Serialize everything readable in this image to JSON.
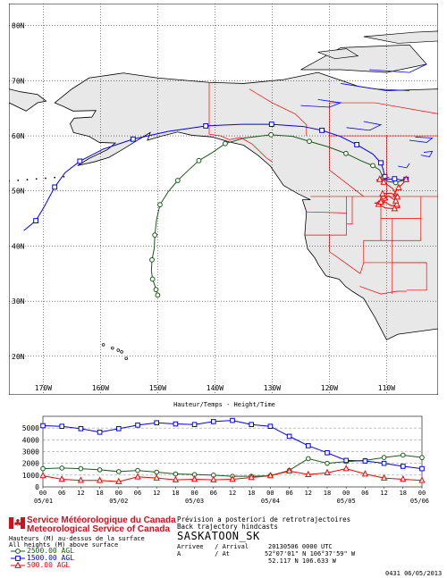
{
  "map": {
    "lat_labels": [
      {
        "text": "80N",
        "lat": 80
      },
      {
        "text": "70N",
        "lat": 70
      },
      {
        "text": "60N",
        "lat": 60
      },
      {
        "text": "50N",
        "lat": 50
      },
      {
        "text": "40N",
        "lat": 40
      },
      {
        "text": "30N",
        "lat": 30
      },
      {
        "text": "20N",
        "lat": 20
      }
    ],
    "lon_labels": [
      {
        "text": "170W",
        "lon": -170
      },
      {
        "text": "160W",
        "lon": -160
      },
      {
        "text": "150W",
        "lon": -150
      },
      {
        "text": "140W",
        "lon": -140
      },
      {
        "text": "130W",
        "lon": -130
      },
      {
        "text": "120W",
        "lon": -120
      },
      {
        "text": "110W",
        "lon": -110
      }
    ],
    "colors": {
      "land": "#e8e8e8",
      "ocean": "#ffffff",
      "boundary_red": "#ff0000",
      "lakes_blue": "#0000ff",
      "grid": "#000000"
    },
    "trajectories": [
      {
        "height": "2500.00 AGL",
        "color": "#1a5a1a",
        "marker": "circle",
        "points": [
          [
            -106.6,
            52.1
          ],
          [
            -107.2,
            51.9
          ],
          [
            -108.4,
            51.5
          ],
          [
            -109.7,
            51.7
          ],
          [
            -110.6,
            52.3
          ],
          [
            -111.2,
            53.8
          ],
          [
            -112.4,
            54.6
          ],
          [
            -114.3,
            55.4
          ],
          [
            -117.1,
            56.8
          ],
          [
            -120.2,
            58.0
          ],
          [
            -123.5,
            59.0
          ],
          [
            -126.4,
            59.9
          ],
          [
            -130.2,
            60.2
          ],
          [
            -134.9,
            59.6
          ],
          [
            -138.2,
            58.6
          ],
          [
            -140.4,
            57.0
          ],
          [
            -142.8,
            55.5
          ],
          [
            -144.6,
            53.8
          ],
          [
            -146.5,
            51.9
          ],
          [
            -148.2,
            49.8
          ],
          [
            -149.6,
            47.5
          ],
          [
            -150.2,
            44.8
          ],
          [
            -150.5,
            42.0
          ],
          [
            -150.6,
            39.6
          ],
          [
            -151.0,
            37.5
          ],
          [
            -151.1,
            35.5
          ],
          [
            -150.9,
            34.0
          ],
          [
            -150.5,
            32.8
          ],
          [
            -150.3,
            32.1
          ],
          [
            -150.1,
            31.6
          ],
          [
            -150.0,
            31.1
          ]
        ]
      },
      {
        "height": "1500.00 AGL",
        "color": "#0000ff",
        "marker": "square",
        "points": [
          [
            -106.6,
            52.1
          ],
          [
            -107.5,
            52.0
          ],
          [
            -108.6,
            52.2
          ],
          [
            -109.8,
            52.1
          ],
          [
            -110.3,
            52.6
          ],
          [
            -110.6,
            53.9
          ],
          [
            -111.0,
            55.1
          ],
          [
            -112.4,
            56.7
          ],
          [
            -115.2,
            58.4
          ],
          [
            -118.1,
            59.9
          ],
          [
            -121.3,
            61.0
          ],
          [
            -124.6,
            61.7
          ],
          [
            -130.1,
            62.1
          ],
          [
            -135.4,
            62.1
          ],
          [
            -141.6,
            61.8
          ],
          [
            -148.2,
            60.8
          ],
          [
            -154.3,
            59.4
          ],
          [
            -159.5,
            57.6
          ],
          [
            -163.6,
            55.4
          ],
          [
            -166.2,
            53.3
          ],
          [
            -168.0,
            50.7
          ],
          [
            -169.8,
            47.2
          ],
          [
            -171.3,
            44.6
          ],
          [
            -173.4,
            42.8
          ]
        ]
      },
      {
        "height": "500.00 AGL",
        "color": "#ff0000",
        "marker": "triangle",
        "points": [
          [
            -106.6,
            52.1
          ],
          [
            -107.0,
            51.5
          ],
          [
            -107.9,
            50.6
          ],
          [
            -108.8,
            49.3
          ],
          [
            -108.2,
            47.6
          ],
          [
            -109.1,
            47.3
          ],
          [
            -110.9,
            48.3
          ],
          [
            -109.6,
            49.1
          ],
          [
            -108.4,
            48.2
          ],
          [
            -107.7,
            47.0
          ],
          [
            -108.6,
            46.8
          ],
          [
            -110.2,
            46.9
          ],
          [
            -111.4,
            47.6
          ],
          [
            -112.1,
            47.8
          ],
          [
            -111.0,
            48.0
          ],
          [
            -109.8,
            48.4
          ],
          [
            -110.7,
            49.5
          ],
          [
            -109.2,
            49.6
          ],
          [
            -108.1,
            48.9
          ],
          [
            -108.9,
            50.4
          ],
          [
            -110.5,
            51.6
          ],
          [
            -111.8,
            52.0
          ],
          [
            -111.2,
            52.1
          ],
          [
            -109.5,
            52.5
          ]
        ]
      }
    ]
  },
  "chart": {
    "title": "Hauteur/Temps - Height/Time",
    "y_ticks": [
      "5000",
      "4000",
      "3000",
      "2000",
      "1000",
      "0"
    ],
    "y_max": 6000,
    "x_hours": [
      "00",
      "06",
      "12",
      "18",
      "00",
      "06",
      "12",
      "18",
      "00",
      "06",
      "12",
      "18",
      "00",
      "06",
      "12",
      "18",
      "00",
      "06",
      "12",
      "18",
      "00"
    ],
    "x_dates": [
      "05/01",
      "05/02",
      "05/03",
      "05/04",
      "05/05",
      "05/06"
    ]
  },
  "chart_data": {
    "type": "line",
    "title": "Hauteur/Temps - Height/Time",
    "x_unit_hours_from_start": [
      0,
      6,
      12,
      18,
      24,
      30,
      36,
      42,
      48,
      54,
      60,
      66,
      72,
      78,
      84,
      90,
      96,
      102,
      108,
      114,
      120
    ],
    "categories": [
      "05/01 00",
      "05/01 06",
      "05/01 12",
      "05/01 18",
      "05/02 00",
      "05/02 06",
      "05/02 12",
      "05/02 18",
      "05/03 00",
      "05/03 06",
      "05/03 12",
      "05/03 18",
      "05/04 00",
      "05/04 06",
      "05/04 12",
      "05/04 18",
      "05/05 00",
      "05/05 06",
      "05/05 12",
      "05/05 18",
      "05/06 00"
    ],
    "ylim": [
      0,
      6000
    ],
    "grid": true,
    "series": [
      {
        "name": "2500.00 AGL",
        "color": "#1a5a1a",
        "marker": "circle",
        "values": [
          1550,
          1600,
          1550,
          1450,
          1300,
          1400,
          1250,
          1100,
          1050,
          1000,
          900,
          900,
          950,
          1400,
          2400,
          2000,
          2150,
          2250,
          2500,
          2700,
          2500
        ]
      },
      {
        "name": "1500.00 AGL",
        "color": "#0000ff",
        "marker": "square",
        "values": [
          5200,
          5150,
          4950,
          4650,
          4950,
          5250,
          5450,
          5350,
          5300,
          5550,
          5650,
          5300,
          5150,
          4300,
          3500,
          2900,
          2250,
          2200,
          2000,
          1750,
          1550
        ]
      },
      {
        "name": "500.00 AGL",
        "color": "#ff0000",
        "marker": "triangle",
        "values": [
          950,
          650,
          550,
          550,
          450,
          850,
          750,
          600,
          650,
          600,
          650,
          800,
          950,
          1350,
          1050,
          1200,
          1550,
          1100,
          750,
          650,
          550
        ]
      }
    ]
  },
  "footer": {
    "msc_fr": "Service Météorologique du Canada",
    "msc_en": "Meteorological Service of Canada",
    "height_note_fr": "Hauteurs (M) au-dessus de la surface",
    "height_note_en": "All heights (M) above surface",
    "legend": [
      {
        "label": "2500.00 AGL",
        "color": "#1a5a1a",
        "marker": "circle"
      },
      {
        "label": "1500.00 AGL",
        "color": "#0000ff",
        "marker": "square"
      },
      {
        "label": "500.00 AGL",
        "color": "#ff0000",
        "marker": "triangle"
      }
    ],
    "product_fr": "Prévision a posteriori de retrotrajectoires",
    "product_en": "Back trajectory hindcasts",
    "station": "SASKATOON_SK",
    "arrivee_label": "Arrivee   / Arrival",
    "arrivee_value": "20130506 0000 UTC",
    "a_label": "A         / At",
    "at_value_dms": "52°07'01\" N 106°37'59\" W",
    "at_value_dec": "52.117 N 106.633 W",
    "stamp": "0431 06/05/2013"
  }
}
